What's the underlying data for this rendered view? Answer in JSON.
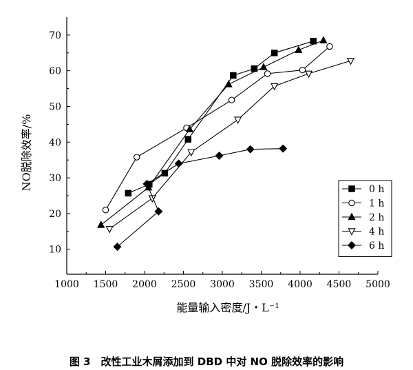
{
  "figure": {
    "caption": "图 3　改性工业木屑添加到 DBD 中对 NO 脱除效率的影响"
  },
  "chart_data": {
    "type": "line",
    "xlabel": "能量输入密度/J・L⁻¹",
    "ylabel": "NO脱除效率/%",
    "xlim": [
      1000,
      5000
    ],
    "ylim": [
      3,
      75
    ],
    "xticks": [
      1000,
      1500,
      2000,
      2500,
      3000,
      3500,
      4000,
      4500,
      5000
    ],
    "yticks": [
      10,
      20,
      30,
      40,
      50,
      60,
      70
    ],
    "grid": false,
    "legend_position": "right",
    "series": [
      {
        "name": "0 h",
        "marker": "square-filled",
        "x": [
          1790,
          2060,
          2260,
          2560,
          3140,
          3410,
          3670,
          4170
        ],
        "y": [
          25.7,
          28.2,
          31.3,
          40.8,
          58.7,
          60.6,
          65.0,
          68.3
        ]
      },
      {
        "name": "1 h",
        "marker": "circle-open",
        "x": [
          1500,
          1900,
          2540,
          3120,
          3580,
          4030,
          4380
        ],
        "y": [
          21.0,
          35.8,
          44.0,
          51.8,
          59.2,
          60.2,
          66.8
        ]
      },
      {
        "name": "2 h",
        "marker": "triangle-filled",
        "x": [
          1440,
          2050,
          2580,
          3080,
          3530,
          3980,
          4300
        ],
        "y": [
          16.8,
          27.3,
          43.6,
          56.2,
          61.0,
          65.8,
          68.5
        ]
      },
      {
        "name": "4 h",
        "marker": "triangle-down-open",
        "x": [
          1550,
          2100,
          2600,
          3200,
          3670,
          4110,
          4650
        ],
        "y": [
          15.7,
          24.3,
          37.2,
          46.3,
          55.7,
          59.2,
          62.8
        ]
      },
      {
        "name": "6 h",
        "marker": "diamond-filled",
        "x": [
          1650,
          2180,
          2030,
          2440,
          2960,
          3360,
          3780
        ],
        "y": [
          10.7,
          20.6,
          28.3,
          34.0,
          36.2,
          38.0,
          38.2
        ]
      }
    ]
  }
}
